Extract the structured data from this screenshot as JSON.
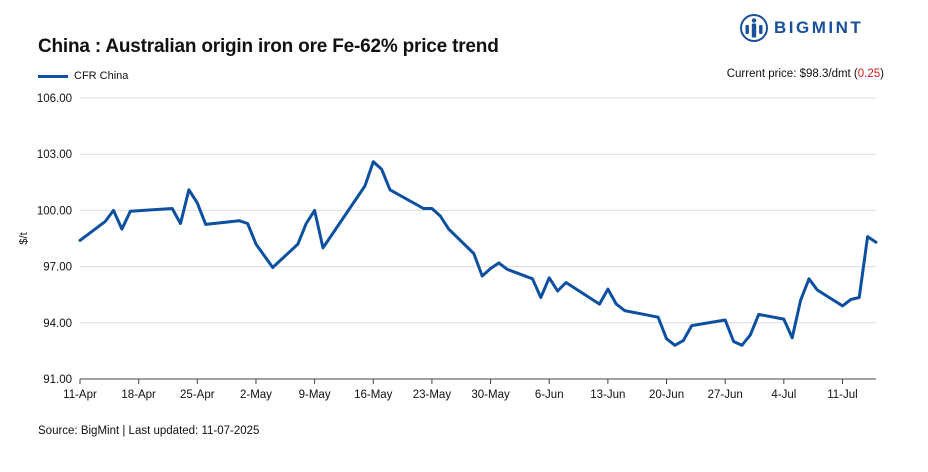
{
  "header": {
    "title": "China : Australian origin iron ore Fe-62% price trend",
    "logo_text": "BIGMINT",
    "current_price_label": "Current price: $98.3/dmt (",
    "current_price_change": "0.25",
    "current_price_close": ")"
  },
  "footer": {
    "source": "Source: BigMint | Last updated: 11-07-2025"
  },
  "colors": {
    "series": "#0d4fa0",
    "grid": "#dcdcdc",
    "change_negative": "#d11a1a",
    "logo": "#1a4f9c"
  },
  "chart_data": {
    "type": "line",
    "title": "China : Australian origin iron ore Fe-62% price trend",
    "xlabel": "",
    "ylabel": "$/t",
    "ylim": [
      91,
      106
    ],
    "yticks": [
      "91.00",
      "94.00",
      "97.00",
      "100.00",
      "103.00",
      "106.00"
    ],
    "xticks": [
      "11-Apr",
      "18-Apr",
      "25-Apr",
      "2-May",
      "9-May",
      "16-May",
      "23-May",
      "30-May",
      "6-Jun",
      "13-Jun",
      "20-Jun",
      "27-Jun",
      "4-Jul",
      "11-Jul"
    ],
    "grid": true,
    "legend_position": "top-left",
    "series": [
      {
        "name": "CFR China",
        "points": [
          [
            "11-Apr",
            98.4
          ],
          [
            "14-Apr",
            99.4
          ],
          [
            "15-Apr",
            100.0
          ],
          [
            "16-Apr",
            99.0
          ],
          [
            "17-Apr",
            99.95
          ],
          [
            "22-Apr",
            100.1
          ],
          [
            "23-Apr",
            99.3
          ],
          [
            "24-Apr",
            101.1
          ],
          [
            "25-Apr",
            100.4
          ],
          [
            "26-Apr",
            99.25
          ],
          [
            "30-Apr",
            99.45
          ],
          [
            "1-May",
            99.3
          ],
          [
            "2-May",
            98.2
          ],
          [
            "4-May",
            96.95
          ],
          [
            "7-May",
            98.2
          ],
          [
            "8-May",
            99.3
          ],
          [
            "9-May",
            100.0
          ],
          [
            "10-May",
            98.0
          ],
          [
            "15-May",
            101.3
          ],
          [
            "16-May",
            102.6
          ],
          [
            "17-May",
            102.2
          ],
          [
            "18-May",
            101.1
          ],
          [
            "22-May",
            100.1
          ],
          [
            "23-May",
            100.1
          ],
          [
            "24-May",
            99.7
          ],
          [
            "25-May",
            99.0
          ],
          [
            "28-May",
            97.7
          ],
          [
            "29-May",
            96.5
          ],
          [
            "30-May",
            96.9
          ],
          [
            "31-May",
            97.2
          ],
          [
            "1-Jun",
            96.85
          ],
          [
            "4-Jun",
            96.35
          ],
          [
            "5-Jun",
            95.35
          ],
          [
            "6-Jun",
            96.4
          ],
          [
            "7-Jun",
            95.7
          ],
          [
            "8-Jun",
            96.15
          ],
          [
            "12-Jun",
            95.0
          ],
          [
            "13-Jun",
            95.8
          ],
          [
            "14-Jun",
            95.0
          ],
          [
            "15-Jun",
            94.65
          ],
          [
            "19-Jun",
            94.3
          ],
          [
            "20-Jun",
            93.15
          ],
          [
            "21-Jun",
            92.8
          ],
          [
            "22-Jun",
            93.05
          ],
          [
            "23-Jun",
            93.85
          ],
          [
            "27-Jun",
            94.15
          ],
          [
            "28-Jun",
            93.0
          ],
          [
            "29-Jun",
            92.8
          ],
          [
            "30-Jun",
            93.35
          ],
          [
            "1-Jul",
            94.45
          ],
          [
            "4-Jul",
            94.2
          ],
          [
            "5-Jul",
            93.2
          ],
          [
            "6-Jul",
            95.2
          ],
          [
            "7-Jul",
            96.35
          ],
          [
            "8-Jul",
            95.75
          ],
          [
            "11-Jul",
            94.9
          ],
          [
            "12-Jul",
            95.25
          ],
          [
            "13-Jul",
            95.35
          ],
          [
            "14-Jul",
            98.6
          ],
          [
            "15-Jul",
            98.3
          ]
        ]
      }
    ]
  }
}
